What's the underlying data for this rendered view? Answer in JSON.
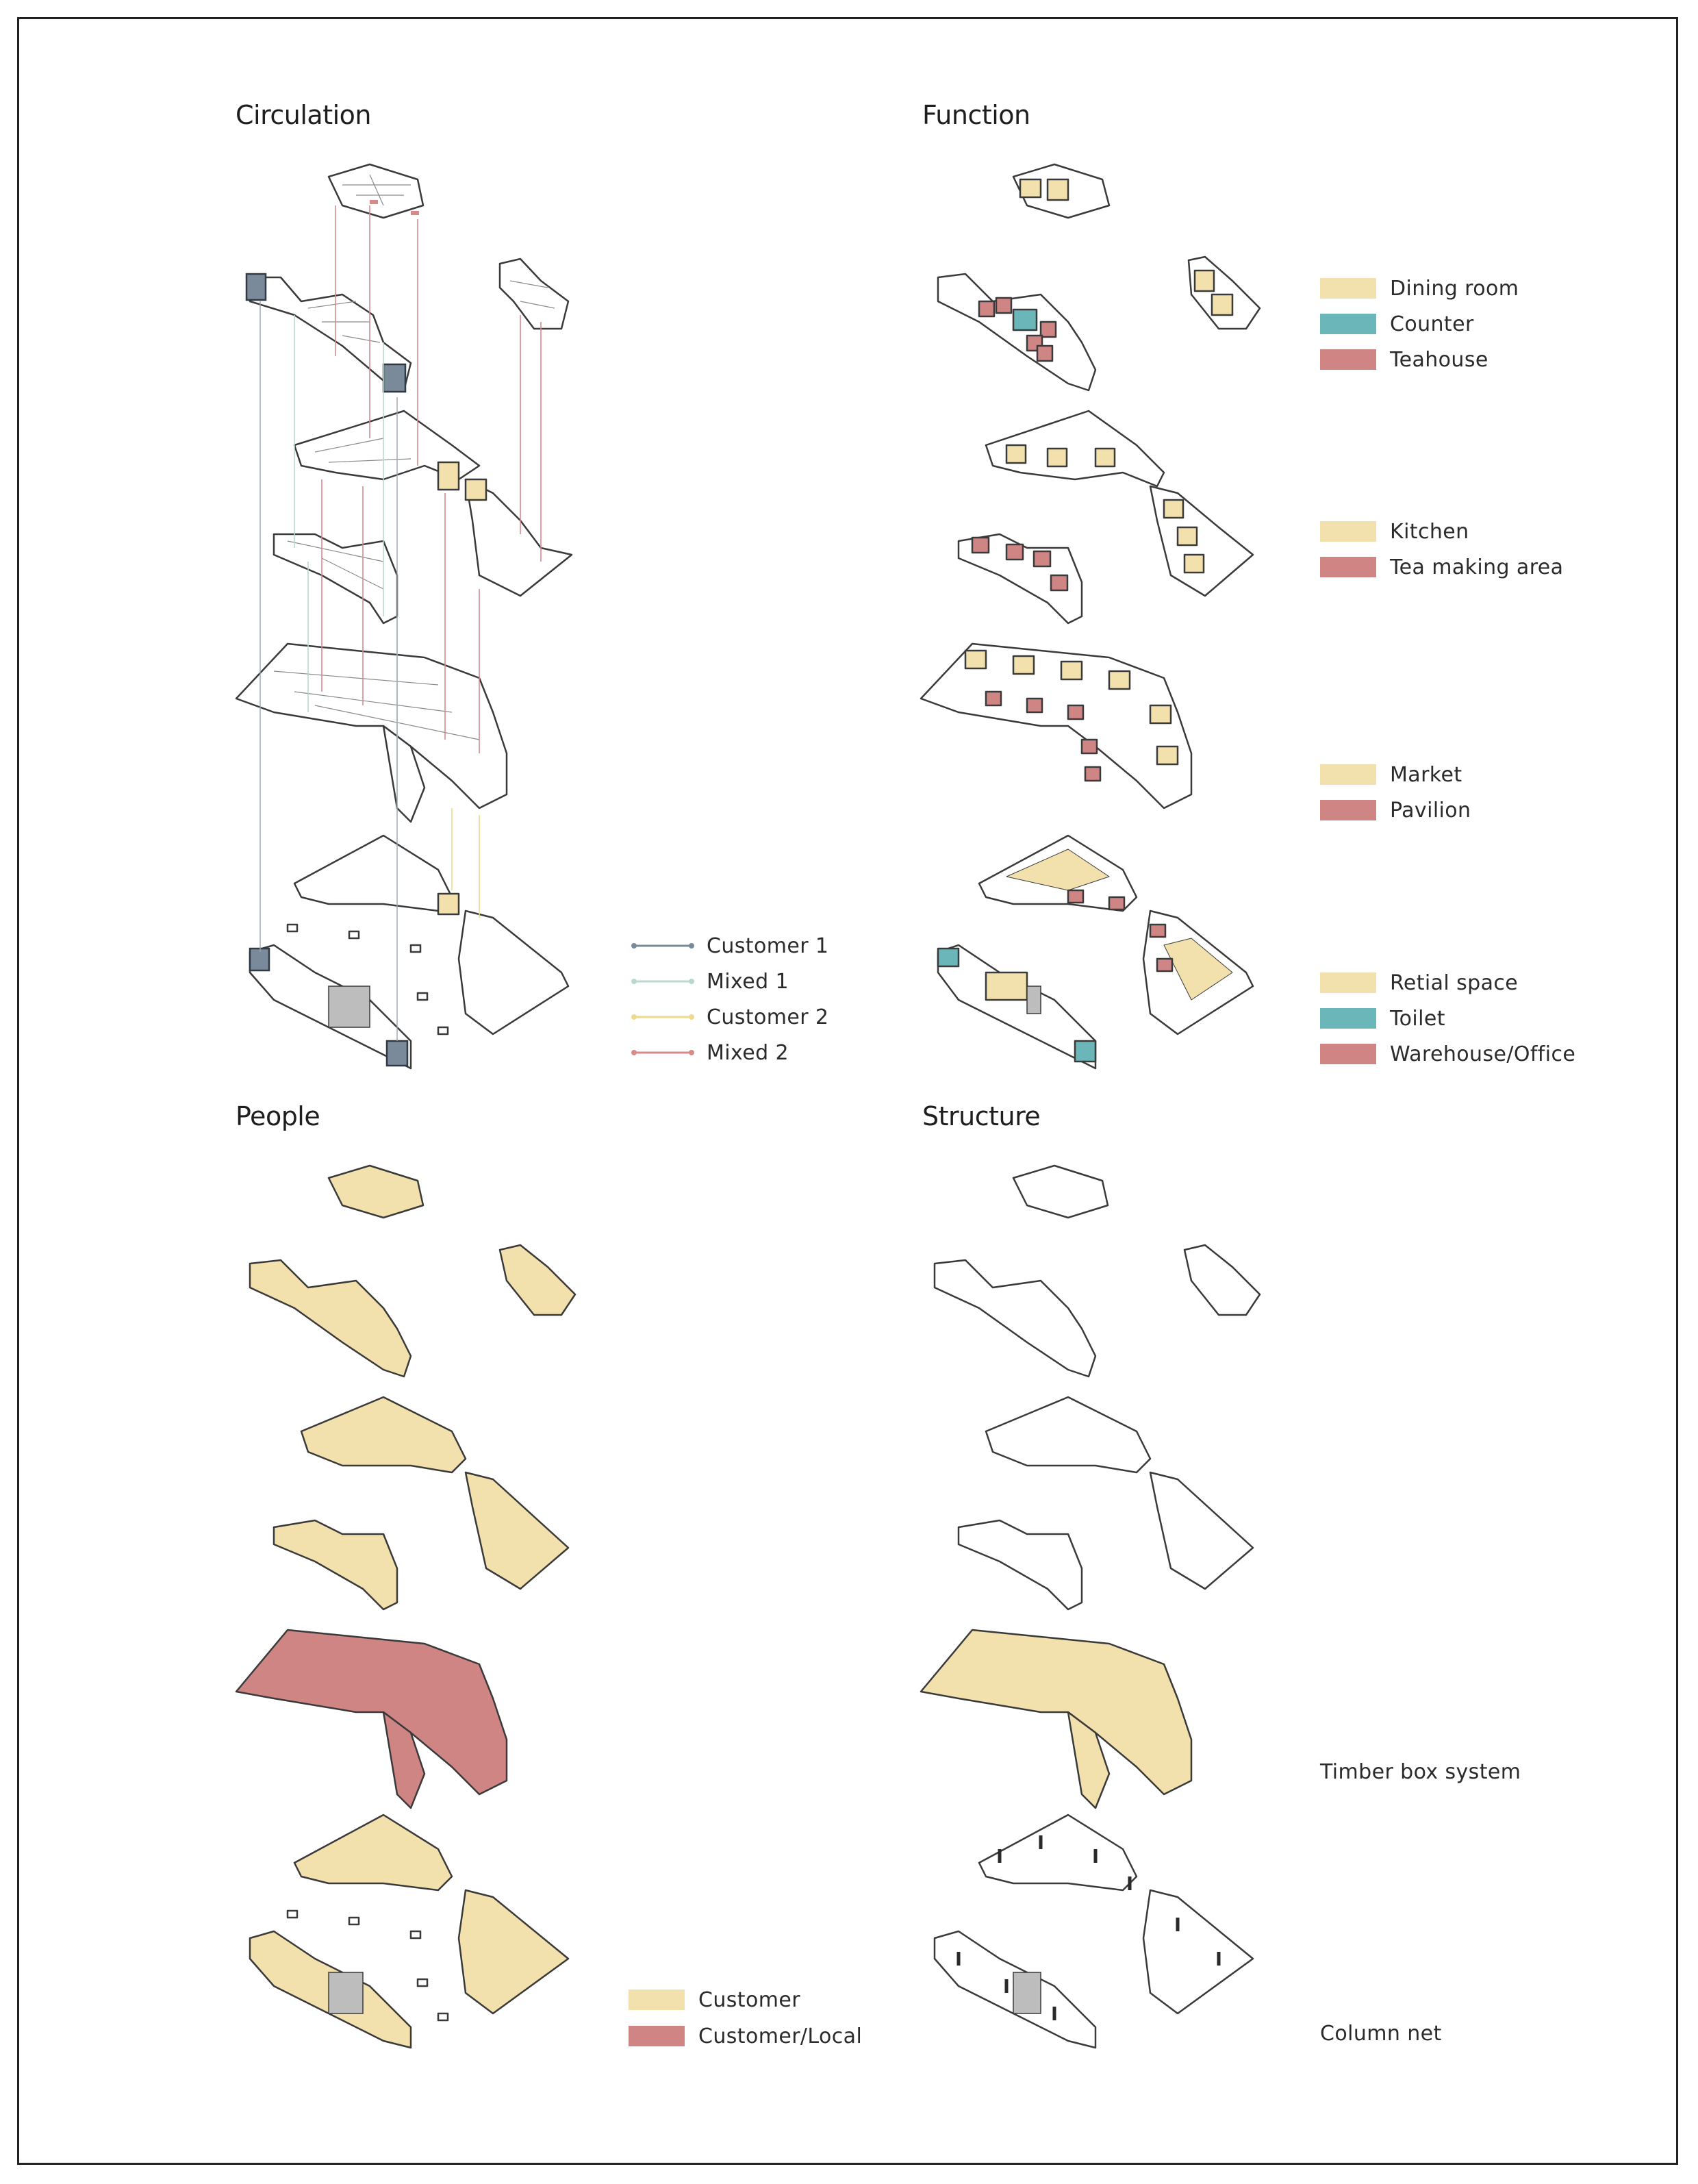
{
  "colors": {
    "yellow": "#f2e1ad",
    "teal": "#6ab6b8",
    "red": "#d08585",
    "steel": "#7a8a9a",
    "mint": "#b9d8cf",
    "line_yellow": "#eeda8a",
    "line_red": "#d68a8a",
    "outline": "#3a3a3a",
    "grey_fill": "#c9c9c9"
  },
  "sections": {
    "circulation": {
      "title": "Circulation",
      "legend": [
        {
          "label": "Customer 1",
          "color": "#7a8a9a"
        },
        {
          "label": "Mixed 1",
          "color": "#b9d8cf"
        },
        {
          "label": "Customer 2",
          "color": "#eeda8a"
        },
        {
          "label": "Mixed 2",
          "color": "#d68a8a"
        }
      ]
    },
    "function": {
      "title": "Function",
      "legend_groups": [
        [
          {
            "label": "Dining room",
            "color": "#f2e1ad"
          },
          {
            "label": "Counter",
            "color": "#6ab6b8"
          },
          {
            "label": "Teahouse",
            "color": "#d08585"
          }
        ],
        [
          {
            "label": "Kitchen",
            "color": "#f2e1ad"
          },
          {
            "label": "Tea making area",
            "color": "#d08585"
          }
        ],
        [
          {
            "label": "Market",
            "color": "#f2e1ad"
          },
          {
            "label": "Pavilion",
            "color": "#d08585"
          }
        ],
        [
          {
            "label": "Retial space",
            "color": "#f2e1ad"
          },
          {
            "label": "Toilet",
            "color": "#6ab6b8"
          },
          {
            "label": "Warehouse/Office",
            "color": "#d08585"
          }
        ]
      ]
    },
    "people": {
      "title": "People",
      "legend": [
        {
          "label": "Customer",
          "color": "#f2e1ad"
        },
        {
          "label": "Customer/Local",
          "color": "#d08585"
        }
      ]
    },
    "structure": {
      "title": "Structure",
      "labels": [
        "Timber box system",
        "Column net"
      ]
    }
  }
}
